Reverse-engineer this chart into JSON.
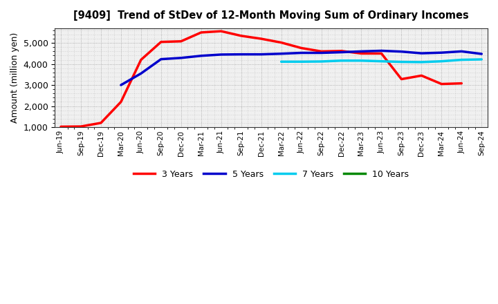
{
  "title": "[9409]  Trend of StDev of 12-Month Moving Sum of Ordinary Incomes",
  "ylabel": "Amount (million yen)",
  "ylim": [
    1000,
    5700
  ],
  "yticks": [
    1000,
    2000,
    3000,
    4000,
    5000
  ],
  "background_color": "#ffffff",
  "plot_bg_color": "#f0f0f0",
  "grid_color": "#888888",
  "x_labels": [
    "Jun-19",
    "Sep-19",
    "Dec-19",
    "Mar-20",
    "Jun-20",
    "Sep-20",
    "Dec-20",
    "Mar-21",
    "Jun-21",
    "Sep-21",
    "Dec-21",
    "Mar-22",
    "Jun-22",
    "Sep-22",
    "Dec-22",
    "Mar-23",
    "Jun-23",
    "Sep-23",
    "Dec-23",
    "Mar-24",
    "Jun-24",
    "Sep-24"
  ],
  "series": {
    "3 Years": {
      "color": "#ff0000",
      "values": [
        1020,
        1030,
        1200,
        2200,
        4200,
        5050,
        5080,
        5500,
        5560,
        5340,
        5200,
        5020,
        4760,
        4600,
        4620,
        4500,
        4500,
        3280,
        3450,
        3050,
        3080,
        null
      ]
    },
    "5 Years": {
      "color": "#0000cc",
      "values": [
        null,
        null,
        null,
        3000,
        3550,
        4230,
        4290,
        4390,
        4450,
        4460,
        4460,
        4490,
        4530,
        4530,
        4560,
        4600,
        4630,
        4590,
        4510,
        4540,
        4600,
        4480
      ]
    },
    "7 Years": {
      "color": "#00ccee",
      "values": [
        null,
        null,
        null,
        null,
        null,
        null,
        null,
        null,
        null,
        null,
        null,
        4110,
        4110,
        4120,
        4160,
        4160,
        4130,
        4100,
        4090,
        4130,
        4200,
        4220
      ]
    },
    "10 Years": {
      "color": "#008800",
      "values": [
        null,
        null,
        null,
        null,
        null,
        null,
        null,
        null,
        null,
        null,
        null,
        null,
        null,
        null,
        null,
        null,
        null,
        null,
        null,
        null,
        null,
        null
      ]
    }
  },
  "legend_labels": [
    "3 Years",
    "5 Years",
    "7 Years",
    "10 Years"
  ],
  "legend_colors": [
    "#ff0000",
    "#0000cc",
    "#00ccee",
    "#008800"
  ],
  "linewidth": 2.5
}
